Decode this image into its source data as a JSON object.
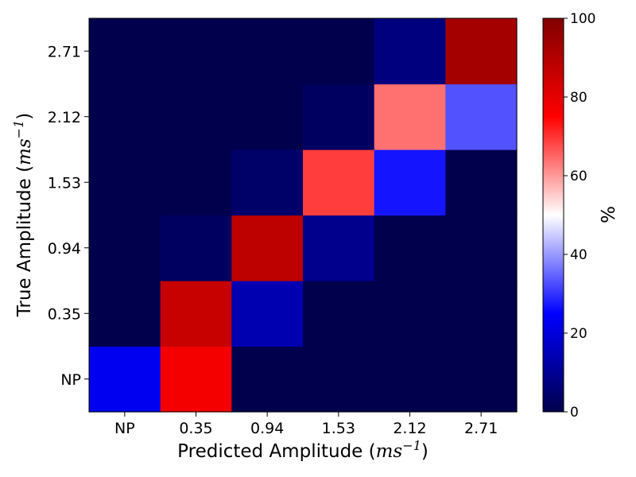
{
  "chart_data": {
    "type": "heatmap",
    "title": "",
    "xlabel": "Predicted Amplitude",
    "ylabel": "True Amplitude",
    "unit_base": "ms",
    "unit_exp": "−1",
    "x_categories": [
      "NP",
      "0.35",
      "0.94",
      "1.53",
      "2.12",
      "2.71"
    ],
    "y_categories": [
      "NP",
      "0.35",
      "0.94",
      "1.53",
      "2.12",
      "2.71"
    ],
    "values": [
      [
        23,
        77,
        0,
        0,
        0,
        0
      ],
      [
        0,
        86,
        14,
        0,
        0,
        0
      ],
      [
        0,
        3,
        88,
        9,
        0,
        0
      ],
      [
        0,
        0,
        4,
        69,
        27,
        0
      ],
      [
        0,
        0,
        0,
        3,
        64,
        33
      ],
      [
        0,
        0,
        0,
        0,
        7,
        93
      ]
    ],
    "colormap": "seismic",
    "colorbar": {
      "label": "%",
      "range": [
        0,
        100
      ],
      "ticks": [
        "0",
        "20",
        "40",
        "60",
        "80",
        "100"
      ]
    }
  }
}
